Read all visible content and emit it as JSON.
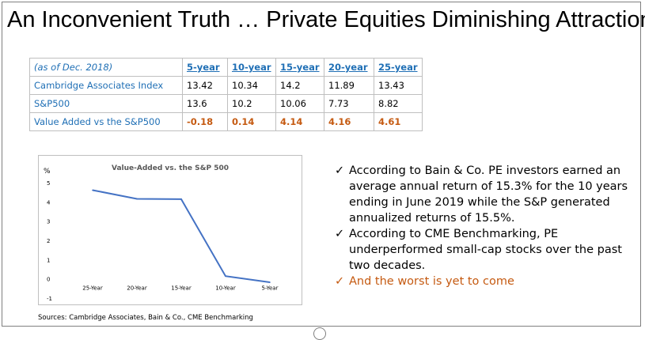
{
  "slide": {
    "title": "An Inconvenient Truth … Private Equities Diminishing Attraction"
  },
  "table": {
    "header_note": "(as of Dec. 2018)",
    "columns": [
      "5-year",
      "10-year",
      "15-year",
      "20-year",
      "25-year"
    ],
    "rows": [
      {
        "label": "Cambridge Associates Index",
        "values": [
          "13.42",
          "10.34",
          "14.2",
          "11.89",
          "13.43"
        ]
      },
      {
        "label": "S&P500",
        "values": [
          "13.6",
          "10.2",
          "10.06",
          "7.73",
          "8.82"
        ]
      },
      {
        "label": "Value Added vs the S&P500",
        "values": [
          "-0.18",
          "0.14",
          "4.14",
          "4.16",
          "4.61"
        ]
      }
    ]
  },
  "chart_data": {
    "type": "line",
    "title": "Value-Added vs. the S&P 500",
    "ylabel": "%",
    "xlabel": "",
    "categories": [
      "25-Year",
      "20-Year",
      "15-Year",
      "10-Year",
      "5-Year"
    ],
    "series": [
      {
        "name": "Value-Added",
        "values": [
          4.61,
          4.16,
          4.14,
          0.14,
          -0.18
        ]
      }
    ],
    "ylim": [
      -1,
      5
    ],
    "yticks": [
      "-1",
      "0",
      "1",
      "2",
      "3",
      "4",
      "5"
    ],
    "grid": false,
    "line_color": "#4472c4"
  },
  "bullets": [
    {
      "check": "✓",
      "text": "According to Bain & Co. PE investors earned an average annual return of 15.3% for the 10 years ending in June 2019 while the S&P generated annualized returns of 15.5%."
    },
    {
      "check": "✓",
      "text": "According to CME Benchmarking, PE underperformed small-cap stocks over the past two decades."
    },
    {
      "check": "✓",
      "text": "And the worst is yet to come"
    }
  ],
  "sources": "Sources: Cambridge Associates, Bain & Co., CME Benchmarking",
  "colors": {
    "blue_text": "#1f6fb5",
    "orange_text": "#c55a11",
    "line": "#4472c4"
  }
}
